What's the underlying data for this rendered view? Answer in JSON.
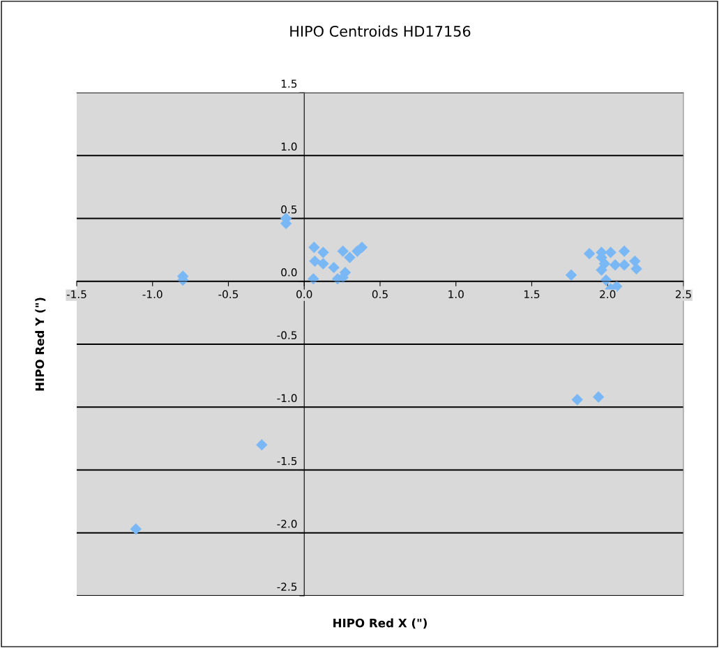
{
  "chart_data": {
    "type": "scatter",
    "title": "HIPO Centroids HD17156",
    "xlabel": "HIPO Red X (\")",
    "ylabel": "HIPO Red Y (\")",
    "series": [
      {
        "color": "#7ab8f5",
        "x": [
          -0.12,
          -0.12,
          -0.8,
          -0.8,
          -0.28,
          -1.11,
          0.065,
          0.125,
          0.07,
          0.125,
          0.195,
          0.06,
          0.22,
          0.255,
          0.27,
          0.255,
          0.3,
          0.35,
          0.38,
          1.76,
          1.88,
          1.96,
          1.96,
          1.98,
          1.96,
          2.02,
          2.05,
          2.11,
          2.11,
          2.18,
          2.19,
          1.99,
          2.02,
          2.06,
          1.8,
          1.94
        ],
        "values": [
          0.5,
          0.46,
          0.04,
          0.01,
          -1.3,
          -1.97,
          0.27,
          0.23,
          0.16,
          0.14,
          0.11,
          0.02,
          0.02,
          0.03,
          0.07,
          0.24,
          0.19,
          0.24,
          0.27,
          0.05,
          0.22,
          0.23,
          0.19,
          0.14,
          0.09,
          0.23,
          0.13,
          0.24,
          0.13,
          0.16,
          0.1,
          0.01,
          -0.06,
          -0.04,
          -0.94,
          -0.92
        ]
      }
    ],
    "xlim": [
      -1.5,
      2.5
    ],
    "xticks": [
      {
        "value": -1.5,
        "label": "-1.5"
      },
      {
        "value": -1.0,
        "label": "-1.0"
      },
      {
        "value": -0.5,
        "label": "-0.5"
      },
      {
        "value": 0,
        "label": "0.0"
      },
      {
        "value": 0.5,
        "label": "0.5"
      },
      {
        "value": 1.0,
        "label": "1.0"
      },
      {
        "value": 1.5,
        "label": "1.5"
      },
      {
        "value": 2.0,
        "label": "2.0"
      },
      {
        "value": 2.5,
        "label": "2.5"
      }
    ],
    "ylim": [
      -2.5,
      1.5
    ],
    "yticks": [
      {
        "value": -2.5,
        "label": "-2.5"
      },
      {
        "value": -2.0,
        "label": "-2.0"
      },
      {
        "value": -1.5,
        "label": "-1.5"
      },
      {
        "value": -1.0,
        "label": "-1.0"
      },
      {
        "value": -0.5,
        "label": "-0.5"
      },
      {
        "value": 0,
        "label": "0.0"
      },
      {
        "value": 0.5,
        "label": "0.5"
      },
      {
        "value": 1.0,
        "label": "1.0"
      },
      {
        "value": 1.5,
        "label": "1.5"
      }
    ],
    "grid": "y",
    "marker": "diamond"
  }
}
